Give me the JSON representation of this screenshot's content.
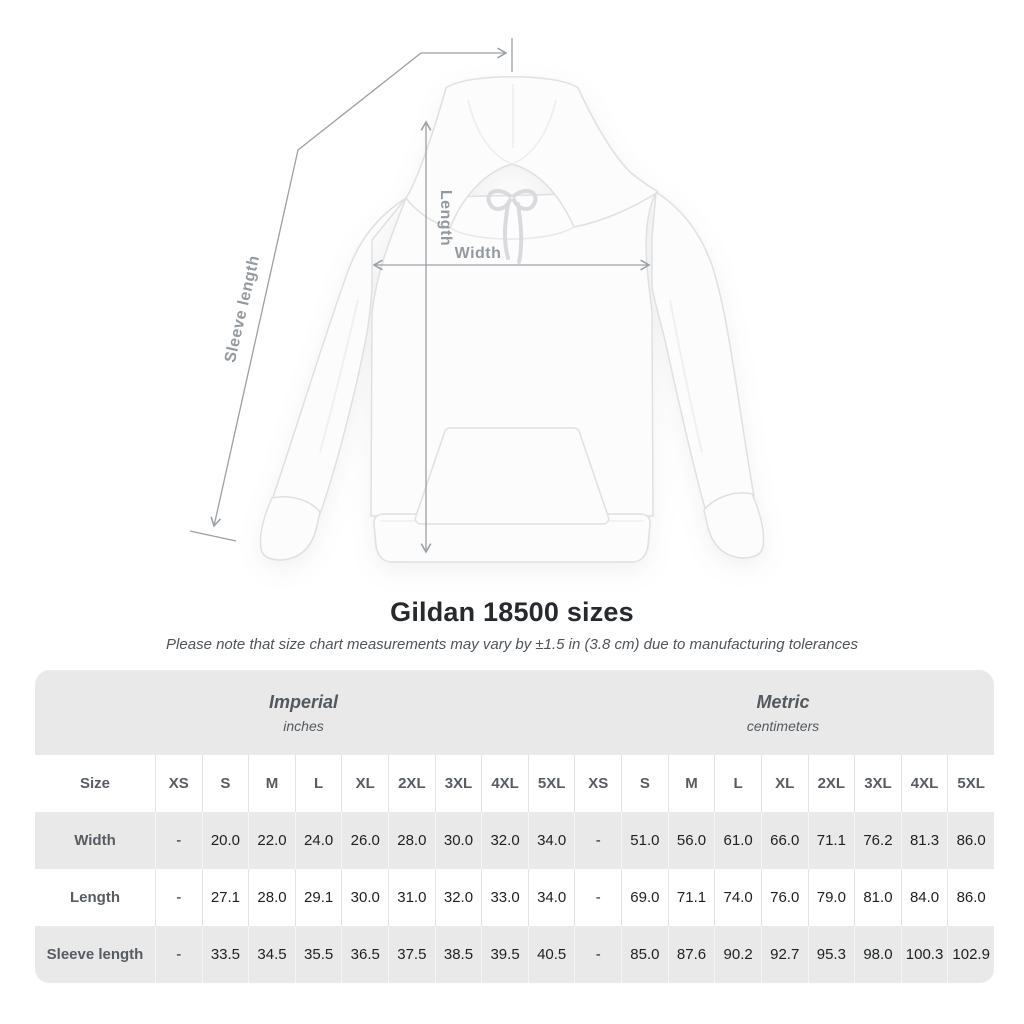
{
  "title": "Gildan 18500 sizes",
  "figure": {
    "length_label": "Length",
    "width_label": "Width",
    "sleeve_label": "Sleeve length"
  },
  "chart_data": {
    "type": "table",
    "title": "Gildan 18500 sizes",
    "note": "Please note that size chart measurements may vary by ±1.5 in (3.8 cm) due to manufacturing tolerances",
    "unit_groups": [
      {
        "label": "Imperial",
        "unit": "inches"
      },
      {
        "label": "Metric",
        "unit": "centimeters"
      }
    ],
    "size_header": "Size",
    "sizes": [
      "XS",
      "S",
      "M",
      "L",
      "XL",
      "2XL",
      "3XL",
      "4XL",
      "5XL"
    ],
    "rows": [
      {
        "label": "Width",
        "imperial": [
          "-",
          "20.0",
          "22.0",
          "24.0",
          "26.0",
          "28.0",
          "30.0",
          "32.0",
          "34.0"
        ],
        "metric": [
          "-",
          "51.0",
          "56.0",
          "61.0",
          "66.0",
          "71.1",
          "76.2",
          "81.3",
          "86.0"
        ]
      },
      {
        "label": "Length",
        "imperial": [
          "-",
          "27.1",
          "28.0",
          "29.1",
          "30.0",
          "31.0",
          "32.0",
          "33.0",
          "34.0"
        ],
        "metric": [
          "-",
          "69.0",
          "71.1",
          "74.0",
          "76.0",
          "79.0",
          "81.0",
          "84.0",
          "86.0"
        ]
      },
      {
        "label": "Sleeve length",
        "imperial": [
          "-",
          "33.5",
          "34.5",
          "35.5",
          "36.5",
          "37.5",
          "38.5",
          "39.5",
          "40.5"
        ],
        "metric": [
          "-",
          "85.0",
          "87.6",
          "90.2",
          "92.7",
          "95.3",
          "98.0",
          "100.3",
          "102.9"
        ]
      }
    ]
  },
  "colors": {
    "stripe": "#e9e9e9",
    "annotation": "#9aa0a5",
    "value_text": "#1d2023",
    "label_text": "#575c63"
  }
}
